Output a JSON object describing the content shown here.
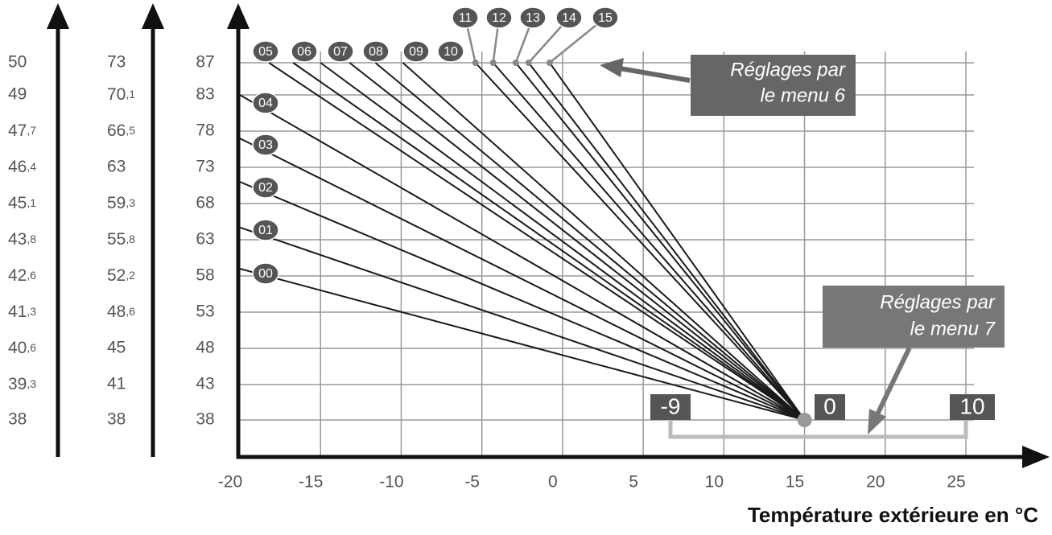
{
  "chart_data": {
    "type": "line",
    "x_label": "Température extérieure en °C",
    "xlim": [
      -20,
      25
    ],
    "xticks": [
      -20,
      -15,
      -10,
      -5,
      0,
      5,
      10,
      15,
      20,
      25
    ],
    "ylim": [
      38,
      87
    ],
    "yticks": [
      38,
      43,
      48,
      53,
      58,
      63,
      68,
      73,
      78,
      83,
      87
    ],
    "grid": true,
    "color": "#1a1a1a",
    "scale_a_labels": [
      "38",
      "39,3",
      "40,6",
      "41,3",
      "42,6",
      "43,8",
      "45,1",
      "46,4",
      "47,7",
      "49",
      "50"
    ],
    "scale_b_labels": [
      "38",
      "41",
      "45",
      "48,6",
      "52,2",
      "55,8",
      "59,3",
      "63",
      "66,5",
      "70,1",
      "73"
    ],
    "series": [
      {
        "name": "00",
        "x": [
          -20,
          15
        ],
        "values": [
          59,
          38
        ]
      },
      {
        "name": "01",
        "x": [
          -20,
          15
        ],
        "values": [
          64.7,
          38
        ]
      },
      {
        "name": "02",
        "x": [
          -20,
          15
        ],
        "values": [
          71,
          38
        ]
      },
      {
        "name": "03",
        "x": [
          -20,
          15
        ],
        "values": [
          77,
          38
        ]
      },
      {
        "name": "04",
        "x": [
          -20,
          15
        ],
        "values": [
          83,
          38
        ]
      },
      {
        "name": "05",
        "x": [
          -18.2,
          15
        ],
        "values": [
          87,
          38
        ]
      },
      {
        "name": "06",
        "x": [
          -16.7,
          15
        ],
        "values": [
          87,
          38
        ]
      },
      {
        "name": "07",
        "x": [
          -15,
          15
        ],
        "values": [
          87,
          38
        ]
      },
      {
        "name": "08",
        "x": [
          -13.2,
          15
        ],
        "values": [
          87,
          38
        ]
      },
      {
        "name": "09",
        "x": [
          -11.6,
          15
        ],
        "values": [
          87,
          38
        ]
      },
      {
        "name": "10",
        "x": [
          -9.9,
          15
        ],
        "values": [
          87,
          38
        ]
      },
      {
        "name": "11",
        "x": [
          -5.4,
          15
        ],
        "values": [
          87,
          38
        ]
      },
      {
        "name": "12",
        "x": [
          -4.3,
          15
        ],
        "values": [
          87,
          38
        ]
      },
      {
        "name": "13",
        "x": [
          -2.9,
          15
        ],
        "values": [
          87,
          38
        ]
      },
      {
        "name": "14",
        "x": [
          -2.1,
          15
        ],
        "values": [
          87,
          38
        ]
      },
      {
        "name": "15",
        "x": [
          -0.8,
          15
        ],
        "values": [
          87,
          38
        ]
      }
    ],
    "annotations": {
      "menu6": [
        "Réglages par",
        "le menu 6"
      ],
      "menu7": [
        "Réglages par",
        "le menu 7"
      ],
      "menu7_scale": [
        -9,
        0,
        10
      ]
    }
  }
}
